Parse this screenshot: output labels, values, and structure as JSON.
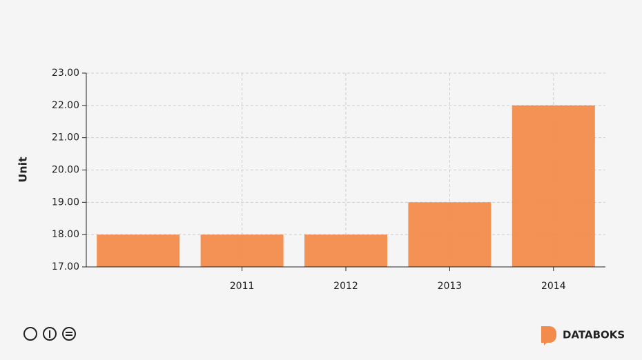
{
  "chart_data": {
    "type": "bar",
    "y_label": "Unit",
    "categories": [
      null,
      "2011",
      "2012",
      "2013",
      "2014"
    ],
    "values": [
      18,
      18,
      18,
      19,
      22
    ],
    "color": "#f38b4c",
    "ylim": [
      17,
      23
    ],
    "yticks": [
      {
        "value": 17,
        "label": "17.00"
      },
      {
        "value": 18,
        "label": "18.00"
      },
      {
        "value": 19,
        "label": "19.00"
      },
      {
        "value": 20,
        "label": "20.00"
      },
      {
        "value": 21,
        "label": "21.00"
      },
      {
        "value": 22,
        "label": "22.00"
      },
      {
        "value": 23,
        "label": "23.00"
      }
    ],
    "grid": true
  },
  "brand": "DATABOKS"
}
